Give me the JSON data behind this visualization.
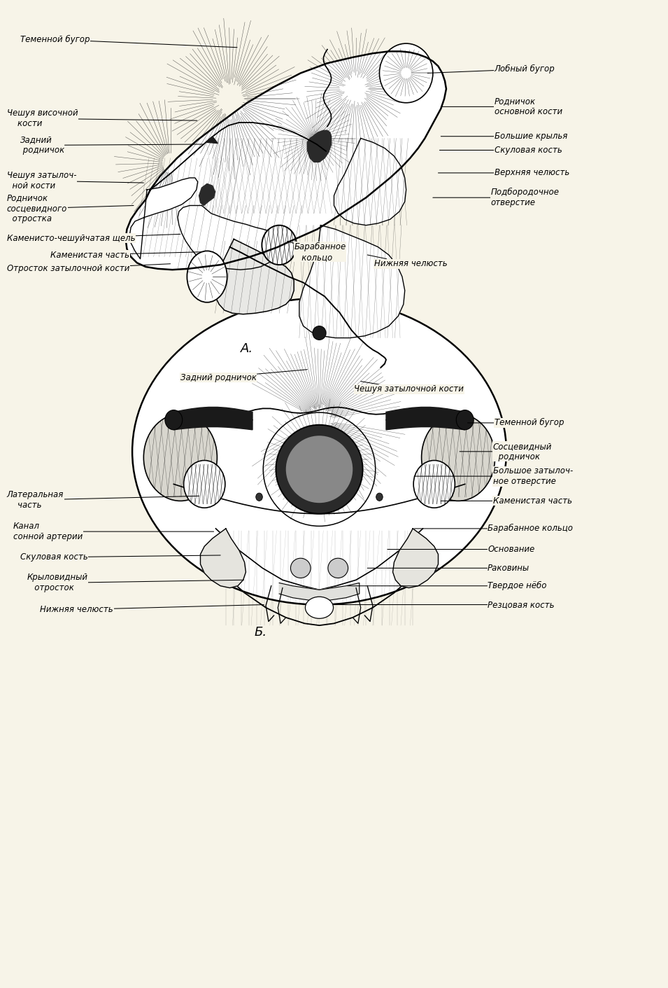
{
  "background_color": "#F7F4E8",
  "figure_size": [
    9.55,
    14.11
  ],
  "label_A": "А.",
  "label_B": "Б.",
  "ann_A_left": [
    [
      "Теменной бугор",
      [
        0.355,
        0.952
      ],
      [
        0.03,
        0.96
      ]
    ],
    [
      "Чешуя височной\n    кости",
      [
        0.295,
        0.878
      ],
      [
        0.01,
        0.88
      ]
    ],
    [
      "Задний\n родничок",
      [
        0.305,
        0.854
      ],
      [
        0.03,
        0.853
      ]
    ],
    [
      "Чешуя затылоч-\n  ной кости",
      [
        0.215,
        0.815
      ],
      [
        0.01,
        0.817
      ]
    ],
    [
      "Родничок\nсосцевидного\n  отростка",
      [
        0.2,
        0.792
      ],
      [
        0.01,
        0.789
      ]
    ],
    [
      "Каменисто-чешуйчатая щель",
      [
        0.27,
        0.763
      ],
      [
        0.01,
        0.759
      ]
    ],
    [
      "    Каменистая часть",
      [
        0.3,
        0.745
      ],
      [
        0.06,
        0.742
      ]
    ],
    [
      "Отросток затылочной кости",
      [
        0.255,
        0.733
      ],
      [
        0.01,
        0.728
      ]
    ]
  ],
  "ann_A_right": [
    [
      "Лобный бугор",
      [
        0.64,
        0.926
      ],
      [
        0.74,
        0.93
      ]
    ],
    [
      "Родничок\nосновной кости",
      [
        0.66,
        0.892
      ],
      [
        0.74,
        0.892
      ]
    ],
    [
      "Большие крылья",
      [
        0.66,
        0.862
      ],
      [
        0.74,
        0.862
      ]
    ],
    [
      "Скуловая кость",
      [
        0.658,
        0.848
      ],
      [
        0.74,
        0.848
      ]
    ],
    [
      "Верхняя челюсть",
      [
        0.656,
        0.825
      ],
      [
        0.74,
        0.825
      ]
    ],
    [
      "Подбородочное\nотверстие",
      [
        0.648,
        0.8
      ],
      [
        0.735,
        0.8
      ]
    ],
    [
      "Барабанное\n   кольцо",
      [
        0.43,
        0.756
      ],
      [
        0.44,
        0.745
      ]
    ],
    [
      "Нижняя челюсть",
      [
        0.55,
        0.742
      ],
      [
        0.56,
        0.733
      ]
    ]
  ],
  "ann_B_top": [
    [
      "Задний родничок",
      [
        0.46,
        0.626
      ],
      [
        0.27,
        0.618
      ]
    ],
    [
      "Чешуя затылочной кости",
      [
        0.54,
        0.614
      ],
      [
        0.53,
        0.606
      ]
    ]
  ],
  "ann_B_right": [
    [
      "Теменной бугор",
      [
        0.7,
        0.572
      ],
      [
        0.74,
        0.572
      ]
    ],
    [
      "Сосцевидный\n  родничок",
      [
        0.688,
        0.543
      ],
      [
        0.738,
        0.543
      ]
    ],
    [
      "Большое затылоч-\nное отверстие",
      [
        0.62,
        0.518
      ],
      [
        0.738,
        0.518
      ]
    ],
    [
      "Каменистая часть",
      [
        0.66,
        0.493
      ],
      [
        0.738,
        0.493
      ]
    ],
    [
      "Барабанное кольцо",
      [
        0.62,
        0.465
      ],
      [
        0.73,
        0.465
      ]
    ],
    [
      "Основание",
      [
        0.58,
        0.444
      ],
      [
        0.73,
        0.444
      ]
    ],
    [
      "Раковины",
      [
        0.55,
        0.425
      ],
      [
        0.73,
        0.425
      ]
    ],
    [
      "Твердое нёбо",
      [
        0.52,
        0.407
      ],
      [
        0.73,
        0.407
      ]
    ],
    [
      "Резцовая кость",
      [
        0.5,
        0.388
      ],
      [
        0.73,
        0.388
      ]
    ]
  ],
  "ann_B_left": [
    [
      "Латеральная\n    часть",
      [
        0.298,
        0.498
      ],
      [
        0.01,
        0.494
      ]
    ],
    [
      "Канал\nсонной артерии",
      [
        0.32,
        0.462
      ],
      [
        0.02,
        0.462
      ]
    ],
    [
      "Скуловая кость",
      [
        0.33,
        0.438
      ],
      [
        0.03,
        0.436
      ]
    ],
    [
      "Крыловидный\n   отросток",
      [
        0.365,
        0.413
      ],
      [
        0.04,
        0.41
      ]
    ],
    [
      "Нижняя челюсть",
      [
        0.395,
        0.388
      ],
      [
        0.06,
        0.383
      ]
    ]
  ]
}
